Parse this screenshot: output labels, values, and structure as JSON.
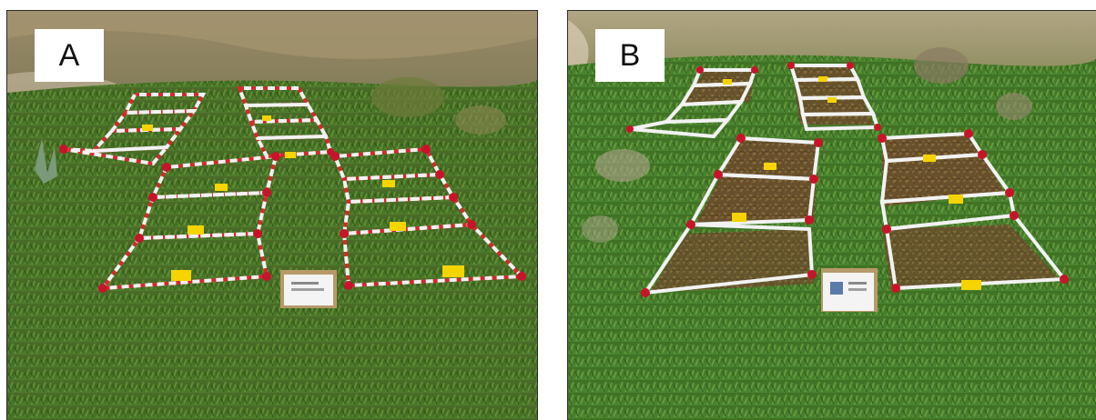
{
  "figure": {
    "panels": [
      {
        "id": "a",
        "label": "A"
      },
      {
        "id": "b",
        "label": "B"
      }
    ]
  }
}
